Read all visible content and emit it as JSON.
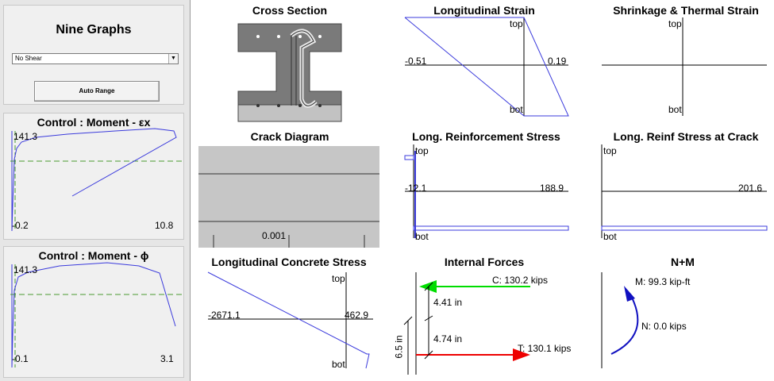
{
  "left_panel": {
    "title": "Nine Graphs",
    "shear_select": {
      "value": "No Shear"
    },
    "auto_range_label": "Auto Range"
  },
  "control_moment_strain": {
    "title": "Control : Moment - εx",
    "y_top": "141.3",
    "x_min": "-0.2",
    "x_max": "10.8"
  },
  "control_moment_phi": {
    "title": "Control : Moment - ϕ",
    "y_top": "141.3",
    "x_min": "-0.1",
    "x_max": "3.1"
  },
  "cross_section": {
    "title": "Cross Section"
  },
  "longitudinal_strain": {
    "title": "Longitudinal Strain",
    "top": "top",
    "bot": "bot",
    "min": "-0.51",
    "max": "0.19"
  },
  "shrinkage_thermal": {
    "title": "Shrinkage & Thermal Strain",
    "top": "top",
    "bot": "bot"
  },
  "crack_diagram": {
    "title": "Crack Diagram",
    "value": "0.001"
  },
  "long_reinf_stress": {
    "title": "Long. Reinforcement Stress",
    "top": "top",
    "bot": "bot",
    "min": "-12.1",
    "max": "188.9"
  },
  "long_reinf_stress_crack": {
    "title": "Long. Reinf Stress at Crack",
    "top": "top",
    "bot": "bot",
    "max": "201.6"
  },
  "long_concrete_stress": {
    "title": "Longitudinal Concrete Stress",
    "top": "top",
    "bot": "bot",
    "min": "-2671.1",
    "max": "462.9"
  },
  "internal_forces": {
    "title": "Internal Forces",
    "compression": "C: 130.2 kips",
    "tension": "T: 130.1 kips",
    "arm_top": "4.41 in",
    "arm_bot": "4.74 in",
    "depth": "6.5 in"
  },
  "n_m": {
    "title": "N+M",
    "moment": "M:  99.3 kip-ft",
    "axial": "N:   0.0 kips"
  },
  "colors": {
    "series": "#3b3bdc",
    "axis_ref": "#4a9a30",
    "compression": "#00dd00",
    "tension": "#ee0000",
    "moment_arrow": "#1010c0"
  }
}
